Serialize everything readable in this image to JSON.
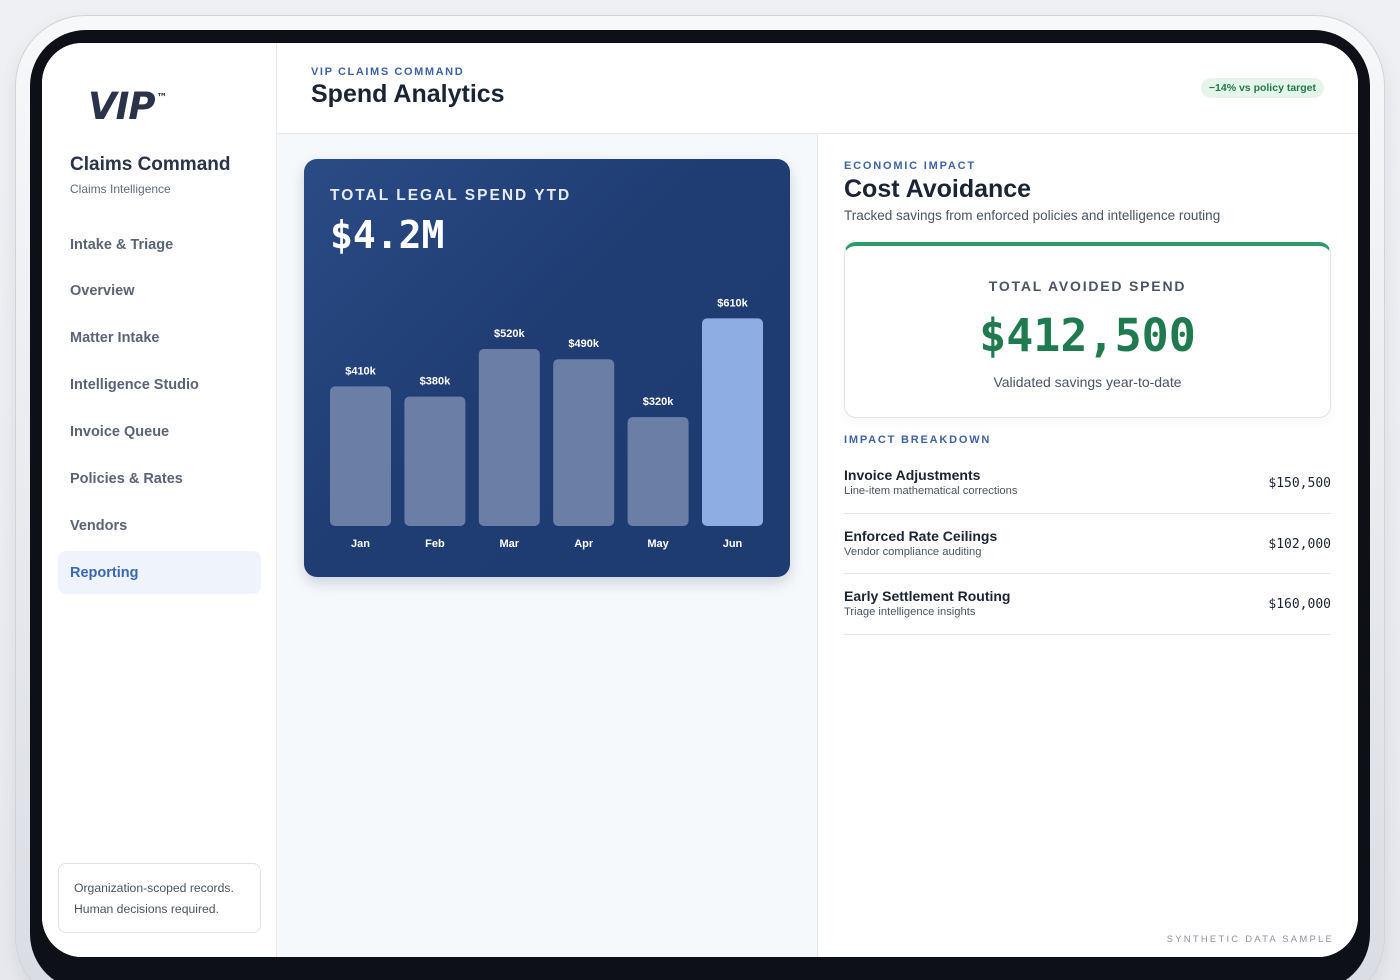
{
  "sidebar": {
    "logo": "VIP",
    "logo_mark": "™",
    "title": "Claims Command",
    "subtitle": "Claims Intelligence",
    "items": [
      {
        "label": "Intake & Triage"
      },
      {
        "label": "Overview"
      },
      {
        "label": "Matter Intake"
      },
      {
        "label": "Intelligence Studio"
      },
      {
        "label": "Invoice Queue"
      },
      {
        "label": "Policies & Rates"
      },
      {
        "label": "Vendors"
      },
      {
        "label": "Reporting",
        "active": true
      }
    ],
    "footnote_line1": "Organization-scoped records.",
    "footnote_line2": "Human decisions required."
  },
  "header": {
    "eyebrow": "VIP CLAIMS COMMAND",
    "title": "Spend Analytics",
    "badge": "−14% vs policy target"
  },
  "spend": {
    "label": "TOTAL LEGAL SPEND YTD",
    "value": "$4.2M"
  },
  "chart_data": {
    "type": "bar",
    "title": "",
    "categories": [
      "Jan",
      "Feb",
      "Mar",
      "Apr",
      "May",
      "Jun"
    ],
    "values": [
      410,
      380,
      520,
      490,
      320,
      610
    ],
    "value_labels": [
      "$410k",
      "$380k",
      "$520k",
      "$490k",
      "$320k",
      "$610k"
    ],
    "unit": "k USD",
    "highlight_index": 5,
    "colors": {
      "bar": "#6b7fa6",
      "highlight": "#8eaee3"
    },
    "ylim": [
      0,
      650
    ],
    "grid": false,
    "legend": "none"
  },
  "impact": {
    "eyebrow": "ECONOMIC IMPACT",
    "title": "Cost Avoidance",
    "description": "Tracked savings from enforced policies and intelligence routing",
    "card_label": "TOTAL AVOIDED SPEND",
    "card_value": "$412,500",
    "card_sub": "Validated savings year-to-date",
    "accent_color": "#2e9a68"
  },
  "breakdown": {
    "eyebrow": "IMPACT BREAKDOWN",
    "rows": [
      {
        "name": "Invoice Adjustments",
        "desc": "Line-item mathematical corrections",
        "amount": "$150,500"
      },
      {
        "name": "Enforced Rate Ceilings",
        "desc": "Vendor compliance auditing",
        "amount": "$102,000"
      },
      {
        "name": "Early Settlement Routing",
        "desc": "Triage intelligence insights",
        "amount": "$160,000"
      }
    ]
  },
  "watermark": "SYNTHETIC DATA SAMPLE"
}
